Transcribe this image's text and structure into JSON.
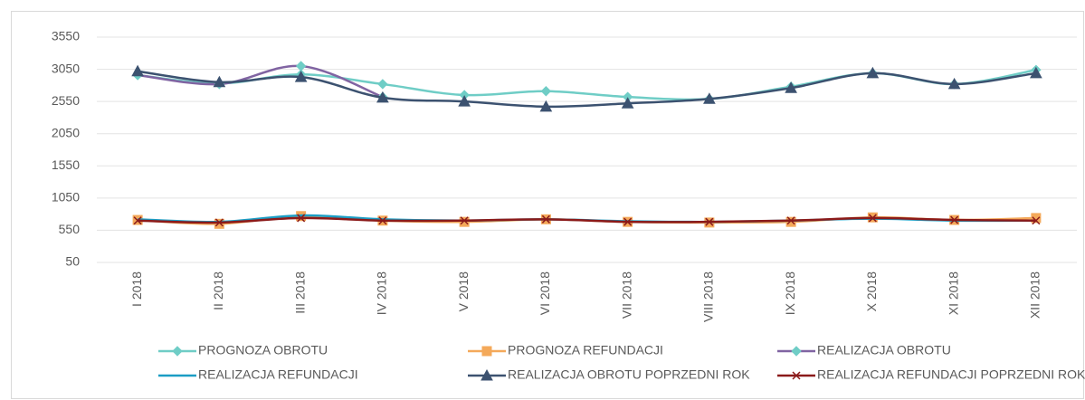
{
  "chart_data": {
    "type": "line",
    "categories": [
      "I 2018",
      "II 2018",
      "III 2018",
      "IV 2018",
      "V 2018",
      "VI 2018",
      "VII 2018",
      "VIII 2018",
      "IX 2018",
      "X 2018",
      "XI 2018",
      "XII 2018"
    ],
    "ylim": [
      50,
      3550
    ],
    "yticks": [
      50,
      550,
      1050,
      1550,
      2050,
      2550,
      3050,
      3550
    ],
    "grid": true,
    "smooth": true,
    "series": [
      {
        "name": "PROGNOZA OBROTU",
        "color": "#6fcdc6",
        "marker": "diamond",
        "values": [
          2960,
          2830,
          2970,
          2820,
          2650,
          2710,
          2620,
          2590,
          2780,
          2990,
          2820,
          3040
        ]
      },
      {
        "name": "PROGNOZA REFUNDACJI",
        "color": "#f4a95a",
        "marker": "square",
        "values": [
          710,
          650,
          770,
          700,
          680,
          720,
          680,
          670,
          680,
          750,
          710,
          740
        ]
      },
      {
        "name": "REALIZACJA OBROTU",
        "color": "#8064a2",
        "marker": "diamond",
        "marker_color": "#6fcdc6",
        "values": [
          2960,
          2820,
          3100,
          2620,
          null,
          null,
          null,
          null,
          null,
          null,
          null,
          null
        ]
      },
      {
        "name": "REALIZACJA REFUNDACJI",
        "color": "#1b9dc4",
        "marker": "none",
        "values": [
          720,
          680,
          780,
          720,
          700,
          720,
          690,
          680,
          700,
          730,
          700,
          700
        ]
      },
      {
        "name": "REALIZACJA OBROTU POPRZEDNI ROK",
        "color": "#3c5270",
        "marker": "triangle",
        "values": [
          3020,
          2850,
          2930,
          2610,
          2550,
          2470,
          2520,
          2590,
          2760,
          2990,
          2820,
          2990
        ]
      },
      {
        "name": "REALIZACJA REFUNDACJI POPRZEDNI ROK",
        "color": "#8b1a1a",
        "marker": "x",
        "values": [
          700,
          670,
          740,
          700,
          700,
          720,
          680,
          680,
          700,
          740,
          710,
          700
        ]
      }
    ]
  }
}
